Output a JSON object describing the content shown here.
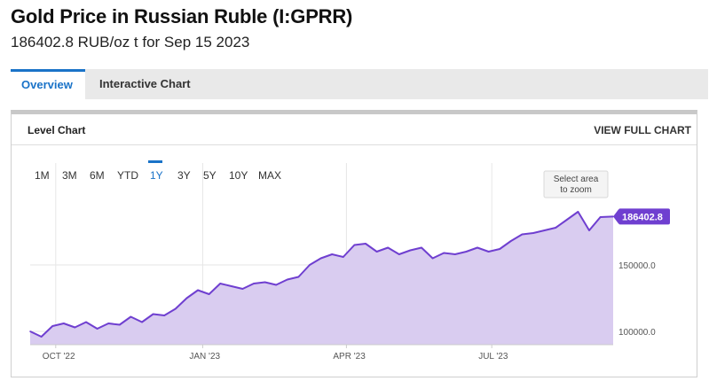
{
  "header": {
    "title": "Gold Price in Russian Ruble (I:GPRR)",
    "subtitle": "186402.8 RUB/oz t for Sep 15 2023"
  },
  "tabs": [
    {
      "label": "Overview",
      "active": true
    },
    {
      "label": "Interactive Chart",
      "active": false
    }
  ],
  "card": {
    "title": "Level Chart",
    "view_full_label": "VIEW FULL CHART"
  },
  "range_buttons": [
    "1M",
    "3M",
    "6M",
    "YTD",
    "1Y",
    "3Y",
    "5Y",
    "10Y",
    "MAX"
  ],
  "active_range": "1Y",
  "select_area_hint": [
    "Select area",
    "to zoom"
  ],
  "colors": {
    "accent": "#1a73c8",
    "line": "#6f3fd0",
    "fill": "#d9ccf0",
    "badge": "#6f3fd0"
  },
  "chart_data": {
    "type": "area",
    "last_value_label": "186402.8",
    "y_ticks": [
      100000.0,
      150000.0
    ],
    "y_tick_labels": [
      "100000.0",
      "150000.0"
    ],
    "x_tick_labels": [
      "OCT '22",
      "JAN '23",
      "APR '23",
      "JUL '23"
    ],
    "x_ticks": [
      "2022-10-01",
      "2023-01-01",
      "2023-04-01",
      "2023-07-01"
    ],
    "x_range": [
      "2022-09-15",
      "2023-09-15"
    ],
    "series": [
      {
        "x": [
          "2022-09-15",
          "2022-09-22",
          "2022-09-29",
          "2022-10-06",
          "2022-10-13",
          "2022-10-20",
          "2022-10-27",
          "2022-11-03",
          "2022-11-10",
          "2022-11-17",
          "2022-11-24",
          "2022-12-01",
          "2022-12-08",
          "2022-12-15",
          "2022-12-22",
          "2022-12-29",
          "2023-01-05",
          "2023-01-12",
          "2023-01-19",
          "2023-01-26",
          "2023-02-02",
          "2023-02-09",
          "2023-02-16",
          "2023-02-23",
          "2023-03-02",
          "2023-03-09",
          "2023-03-16",
          "2023-03-23",
          "2023-03-30",
          "2023-04-06",
          "2023-04-13",
          "2023-04-20",
          "2023-04-27",
          "2023-05-04",
          "2023-05-11",
          "2023-05-18",
          "2023-05-25",
          "2023-06-01",
          "2023-06-08",
          "2023-06-15",
          "2023-06-22",
          "2023-06-29",
          "2023-07-06",
          "2023-07-13",
          "2023-07-20",
          "2023-07-27",
          "2023-08-03",
          "2023-08-10",
          "2023-08-17",
          "2023-08-24",
          "2023-08-31",
          "2023-09-07",
          "2023-09-15"
        ],
        "y": [
          100000,
          96000,
          104000,
          106000,
          103000,
          107000,
          102000,
          106000,
          105000,
          111000,
          107000,
          113000,
          112000,
          117000,
          125000,
          131000,
          128000,
          136000,
          134000,
          132000,
          136000,
          137000,
          135000,
          139000,
          141000,
          150000,
          155000,
          158000,
          156000,
          165000,
          166000,
          160000,
          163000,
          158000,
          161000,
          163000,
          155000,
          159000,
          158000,
          160000,
          163000,
          160000,
          162000,
          168000,
          173000,
          174000,
          176000,
          178000,
          184000,
          190000,
          176000,
          186000,
          186402.8
        ]
      }
    ]
  }
}
